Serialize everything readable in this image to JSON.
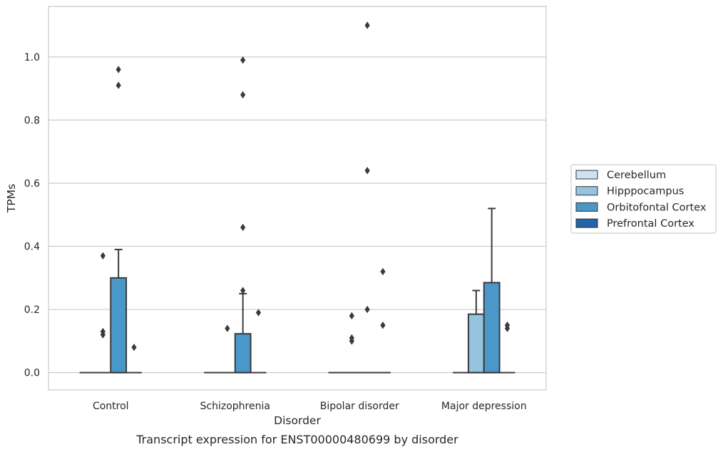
{
  "chart_data": {
    "type": "box",
    "title": "",
    "caption": "Transcript expression for ENST00000480699 by disorder",
    "xlabel": "Disorder",
    "ylabel": "TPMs",
    "ylim": [
      -0.055,
      1.16
    ],
    "yticks": [
      "0.0",
      "0.2",
      "0.4",
      "0.6",
      "0.8",
      "1.0"
    ],
    "grid": "horizontal",
    "legend_position": "right",
    "categories": [
      "Control",
      "Schizophrenia",
      "Bipolar disorder",
      "Major depression"
    ],
    "series": [
      {
        "name": "Cerebellum",
        "color": "#d0e1f2",
        "boxes": [
          {
            "q1": 0,
            "median": 0,
            "q3": 0,
            "whisker_low": 0,
            "whisker_high": 0,
            "outliers": []
          },
          {
            "q1": 0,
            "median": 0,
            "q3": 0,
            "whisker_low": 0,
            "whisker_high": 0,
            "outliers": []
          },
          {
            "q1": 0,
            "median": 0,
            "q3": 0,
            "whisker_low": 0,
            "whisker_high": 0,
            "outliers": []
          },
          {
            "q1": 0,
            "median": 0,
            "q3": 0,
            "whisker_low": 0,
            "whisker_high": 0,
            "outliers": []
          }
        ]
      },
      {
        "name": "Hipppocampus",
        "color": "#94c4df",
        "boxes": [
          {
            "q1": 0,
            "median": 0,
            "q3": 0,
            "whisker_low": 0,
            "whisker_high": 0,
            "outliers": [
              0.12,
              0.13,
              0.37
            ]
          },
          {
            "q1": 0,
            "median": 0,
            "q3": 0,
            "whisker_low": 0,
            "whisker_high": 0,
            "outliers": [
              0.14
            ]
          },
          {
            "q1": 0,
            "median": 0,
            "q3": 0,
            "whisker_low": 0,
            "whisker_high": 0,
            "outliers": [
              0.1,
              0.11,
              0.18
            ]
          },
          {
            "q1": 0,
            "median": 0,
            "q3": 0.185,
            "whisker_low": 0,
            "whisker_high": 0.26,
            "outliers": []
          }
        ]
      },
      {
        "name": "Orbitofontal Cortex",
        "color": "#4a98c9",
        "boxes": [
          {
            "q1": 0,
            "median": 0,
            "q3": 0.3,
            "whisker_low": 0,
            "whisker_high": 0.39,
            "outliers": [
              0.91,
              0.96
            ]
          },
          {
            "q1": 0,
            "median": 0,
            "q3": 0.123,
            "whisker_low": 0,
            "whisker_high": 0.25,
            "outliers": [
              0.26,
              0.46,
              0.88,
              0.99
            ]
          },
          {
            "q1": 0,
            "median": 0,
            "q3": 0,
            "whisker_low": 0,
            "whisker_high": 0,
            "outliers": [
              0.2,
              0.64,
              1.1
            ]
          },
          {
            "q1": 0,
            "median": 0,
            "q3": 0.285,
            "whisker_low": 0,
            "whisker_high": 0.52,
            "outliers": []
          }
        ]
      },
      {
        "name": "Prefrontal Cortex",
        "color": "#2464a8",
        "boxes": [
          {
            "q1": 0,
            "median": 0,
            "q3": 0,
            "whisker_low": 0,
            "whisker_high": 0,
            "outliers": [
              0.08
            ]
          },
          {
            "q1": 0,
            "median": 0,
            "q3": 0,
            "whisker_low": 0,
            "whisker_high": 0,
            "outliers": [
              0.19
            ]
          },
          {
            "q1": 0,
            "median": 0,
            "q3": 0,
            "whisker_low": 0,
            "whisker_high": 0,
            "outliers": [
              0.15,
              0.32
            ]
          },
          {
            "q1": 0,
            "median": 0,
            "q3": 0,
            "whisker_low": 0,
            "whisker_high": 0,
            "outliers": [
              0.14,
              0.15
            ]
          }
        ]
      }
    ]
  }
}
